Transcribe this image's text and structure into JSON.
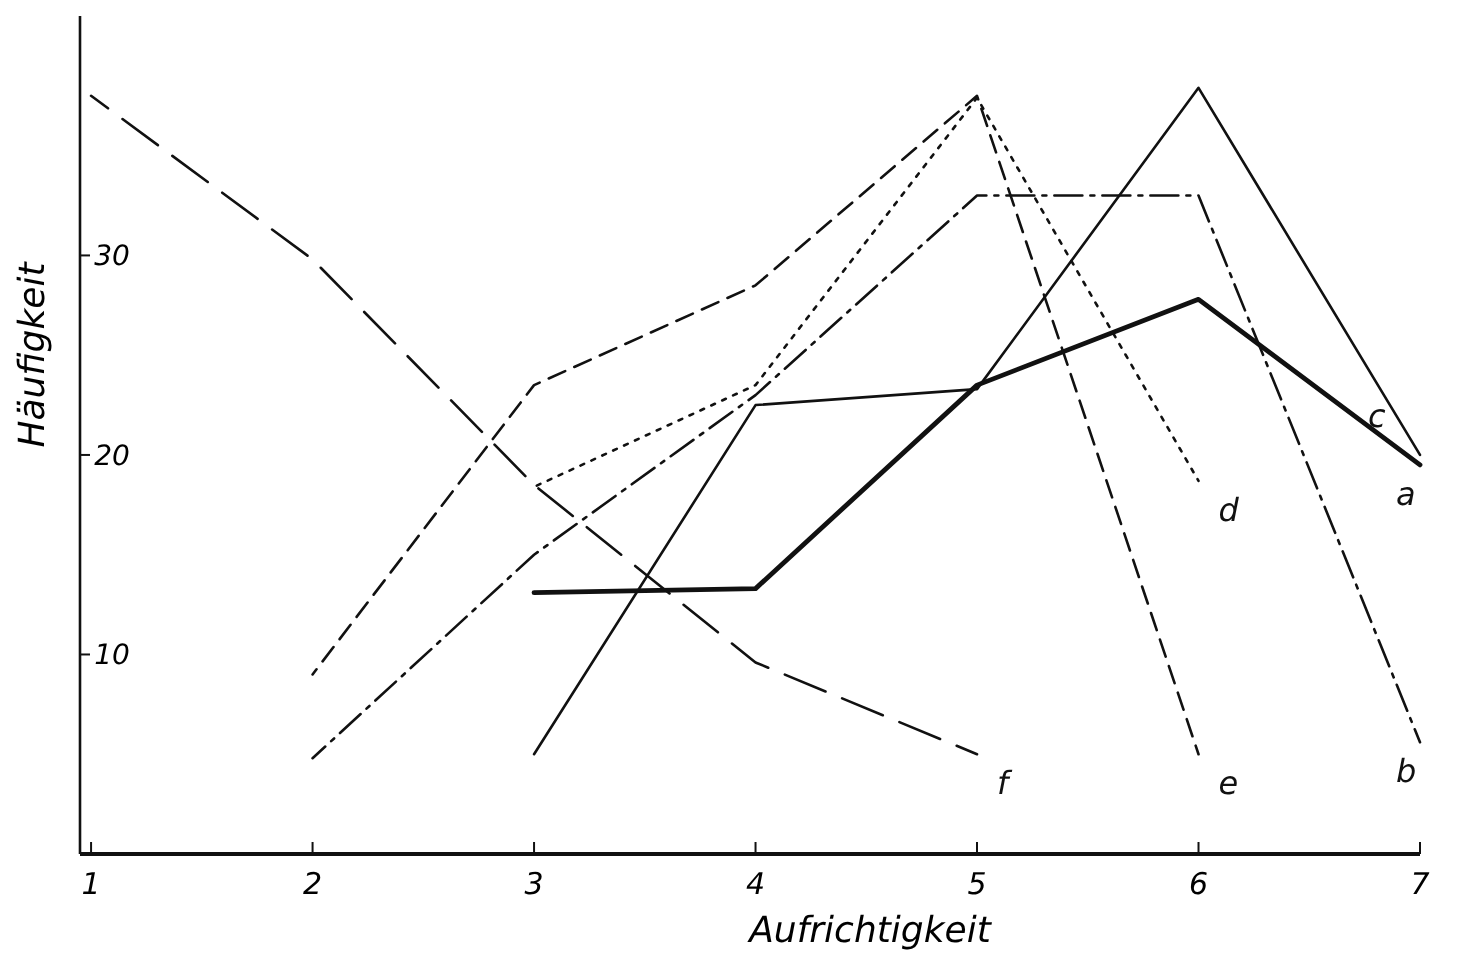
{
  "chart_data": {
    "type": "line",
    "xlabel": "Aufrichtigkeit",
    "ylabel": "Häufigkeit",
    "xlim": [
      0.95,
      7
    ],
    "ylim": [
      0,
      42
    ],
    "xticks": [
      1,
      2,
      3,
      4,
      5,
      6,
      7
    ],
    "yticks": [
      10,
      20,
      30
    ],
    "grid": false,
    "marker": "none",
    "series": [
      {
        "name": "a",
        "color": "#111111",
        "line_style": "solid",
        "x": [
          3,
          4,
          5,
          6,
          7
        ],
        "values": [
          13.1,
          13.3,
          23.5,
          27.8,
          19.5
        ]
      },
      {
        "name": "b",
        "color": "#111111",
        "line_style": "dashdot",
        "x": [
          2,
          3,
          4,
          5,
          6,
          7
        ],
        "values": [
          4.8,
          15,
          23,
          33,
          33,
          5.6
        ]
      },
      {
        "name": "c",
        "color": "#111111",
        "line_style": "solid",
        "x": [
          3,
          4,
          5,
          6,
          7
        ],
        "values": [
          5,
          22.5,
          23.3,
          38.4,
          20
        ]
      },
      {
        "name": "d",
        "color": "#111111",
        "line_style": "dotted",
        "x": [
          3,
          4,
          5,
          6
        ],
        "values": [
          18.4,
          23.5,
          37.9,
          18.7
        ]
      },
      {
        "name": "e",
        "color": "#111111",
        "line_style": "dashed",
        "x": [
          2,
          3,
          4,
          5,
          6
        ],
        "values": [
          9,
          23.5,
          28.5,
          38,
          5
        ]
      },
      {
        "name": "f",
        "color": "#111111",
        "line_style": "longdash",
        "x": [
          1,
          2,
          3,
          4,
          5
        ],
        "values": [
          38,
          29.8,
          18.5,
          9.6,
          5
        ]
      }
    ]
  }
}
